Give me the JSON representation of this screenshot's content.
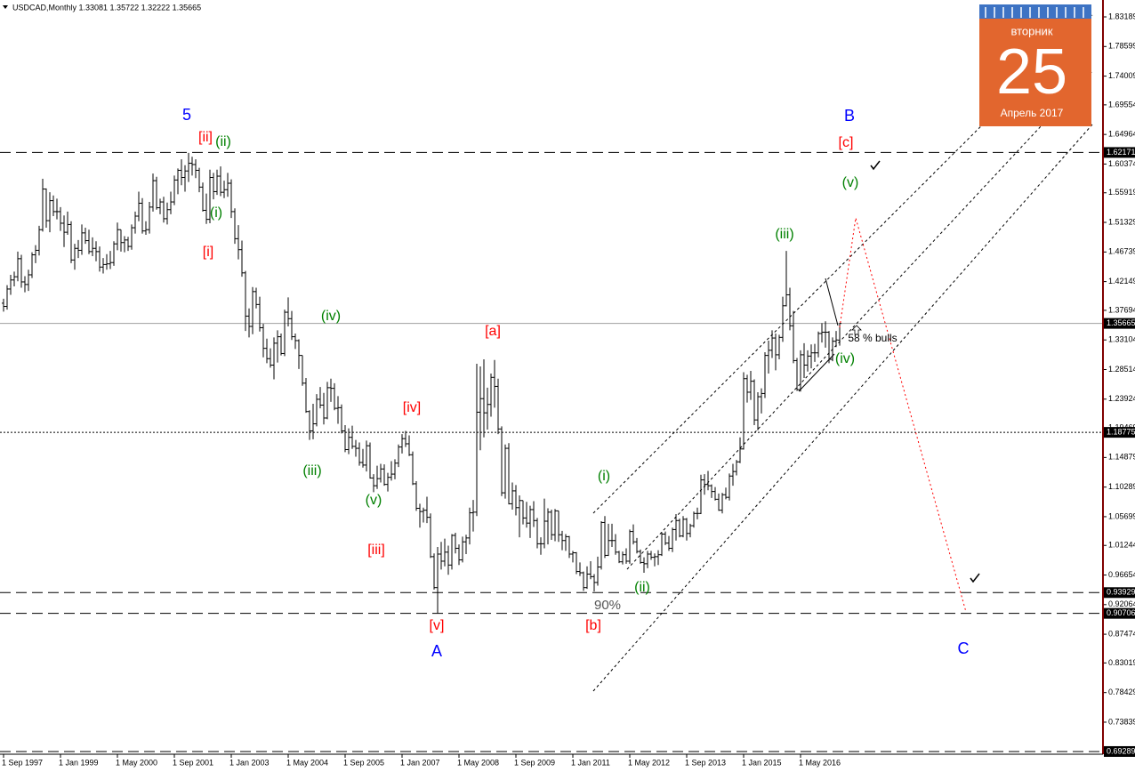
{
  "chart_data": {
    "type": "ohlc",
    "title": "USDCAD,Monthly  1.33081 1.35722 1.32222 1.35665",
    "categories": [
      "1 Sep 1997",
      null,
      null,
      null,
      null,
      null,
      null,
      null,
      null,
      null,
      null,
      null,
      null,
      null,
      null,
      null,
      "1 Jan 1999",
      null,
      null,
      null,
      null,
      null,
      null,
      null,
      null,
      null,
      null,
      null,
      null,
      null,
      null,
      null,
      "1 May 2000",
      null,
      null,
      null,
      null,
      null,
      null,
      null,
      null,
      null,
      null,
      null,
      null,
      null,
      null,
      null,
      "1 Sep 2001",
      null,
      null,
      null,
      null,
      null,
      null,
      null,
      null,
      null,
      null,
      null,
      null,
      null,
      null,
      null,
      "1 Jan 2003",
      null,
      null,
      null,
      null,
      null,
      null,
      null,
      null,
      null,
      null,
      null,
      null,
      null,
      null,
      null,
      "1 May 2004",
      null,
      null,
      null,
      null,
      null,
      null,
      null,
      null,
      null,
      null,
      null,
      null,
      null,
      null,
      null,
      "1 Sep 2005",
      null,
      null,
      null,
      null,
      null,
      null,
      null,
      null,
      null,
      null,
      null,
      null,
      null,
      null,
      null,
      "1 Jan 2007",
      null,
      null,
      null,
      null,
      null,
      null,
      null,
      null,
      null,
      null,
      null,
      null,
      null,
      null,
      null,
      "1 May 2008",
      null,
      null,
      null,
      null,
      null,
      null,
      null,
      null,
      null,
      null,
      null,
      null,
      null,
      null,
      null,
      "1 Sep 2009",
      null,
      null,
      null,
      null,
      null,
      null,
      null,
      null,
      null,
      null,
      null,
      null,
      null,
      null,
      null,
      "1 Jan 2011",
      null,
      null,
      null,
      null,
      null,
      null,
      null,
      null,
      null,
      null,
      null,
      null,
      null,
      null,
      null,
      "1 May 2012",
      null,
      null,
      null,
      null,
      null,
      null,
      null,
      null,
      null,
      null,
      null,
      null,
      null,
      null,
      null,
      "1 Sep 2013",
      null,
      null,
      null,
      null,
      null,
      null,
      null,
      null,
      null,
      null,
      null,
      null,
      null,
      null,
      null,
      "1 Jan 2015",
      null,
      null,
      null,
      null,
      null,
      null,
      null,
      null,
      null,
      null,
      null,
      null,
      null,
      null,
      null,
      "1 May 2016",
      null,
      null,
      null,
      null,
      null,
      null,
      null,
      null,
      null,
      null,
      null
    ],
    "open": [
      1.388,
      1.383,
      1.41,
      1.424,
      1.429,
      1.457,
      1.421,
      1.417,
      1.432,
      1.463,
      1.47,
      1.502,
      1.565,
      1.516,
      1.547,
      1.53,
      1.53,
      1.512,
      1.498,
      1.51,
      1.455,
      1.473,
      1.47,
      1.497,
      1.485,
      1.468,
      1.473,
      1.468,
      1.444,
      1.448,
      1.449,
      1.451,
      1.48,
      1.502,
      1.482,
      1.486,
      1.476,
      1.505,
      1.523,
      1.543,
      1.5,
      1.502,
      1.537,
      1.578,
      1.536,
      1.545,
      1.519,
      1.533,
      1.545,
      1.579,
      1.594,
      1.583,
      1.593,
      1.605,
      1.603,
      1.594,
      1.568,
      1.532,
      1.518,
      1.583,
      1.561,
      1.585,
      1.56,
      1.564,
      1.574,
      1.53,
      1.488,
      1.471,
      1.435,
      1.368,
      1.352,
      1.406,
      1.386,
      1.35,
      1.318,
      1.302,
      1.292,
      1.326,
      1.336,
      1.31,
      1.374,
      1.364,
      1.336,
      1.33,
      1.307,
      1.264,
      1.22,
      1.19,
      1.201,
      1.239,
      1.23,
      1.21,
      1.257,
      1.256,
      1.225,
      1.226,
      1.19,
      1.161,
      1.18,
      1.166,
      1.163,
      1.141,
      1.137,
      1.167,
      1.117,
      1.105,
      1.116,
      1.131,
      1.107,
      1.118,
      1.123,
      1.14,
      1.165,
      1.178,
      1.17,
      1.153,
      1.108,
      1.07,
      1.065,
      1.067,
      1.056,
      0.995,
      0.947,
      0.999,
      0.988,
      1.002,
      0.982,
      1.028,
      1.008,
      0.99,
      1.018,
      1.024,
      1.063,
      1.064,
      1.219,
      1.24,
      1.218,
      1.231,
      1.273,
      1.259,
      1.193,
      1.094,
      1.163,
      1.077,
      1.097,
      1.071,
      1.082,
      1.055,
      1.047,
      1.068,
      1.051,
      1.015,
      1.015,
      1.05,
      1.064,
      1.029,
      1.066,
      1.029,
      1.02,
      1.026,
      0.999,
      1.001,
      0.972,
      0.97,
      0.947,
      0.968,
      0.964,
      0.955,
      0.979,
      1.048,
      0.997,
      1.02,
      1.02,
      1.002,
      0.987,
      0.998,
      0.988,
      1.034,
      1.018,
      1.003,
      0.986,
      0.984,
      0.999,
      0.994,
      0.995,
      0.998,
      1.03,
      1.016,
      1.008,
      1.037,
      1.051,
      1.027,
      1.053,
      1.031,
      1.043,
      1.062,
      1.062,
      1.114,
      1.107,
      1.105,
      1.096,
      1.084,
      1.067,
      1.091,
      1.087,
      1.12,
      1.127,
      1.142,
      1.162,
      1.271,
      1.25,
      1.267,
      1.207,
      1.243,
      1.248,
      1.307,
      1.315,
      1.334,
      1.308,
      1.335,
      1.384,
      1.401,
      1.353,
      1.299,
      1.254,
      1.308,
      1.292,
      1.306,
      1.311,
      1.311,
      1.341,
      1.343,
      1.343,
      1.301,
      1.329,
      1.33081
    ],
    "high": [
      1.395,
      1.416,
      1.432,
      1.437,
      1.468,
      1.463,
      1.43,
      1.44,
      1.467,
      1.478,
      1.508,
      1.581,
      1.566,
      1.56,
      1.555,
      1.55,
      1.537,
      1.524,
      1.53,
      1.515,
      1.48,
      1.486,
      1.51,
      1.505,
      1.502,
      1.49,
      1.484,
      1.476,
      1.458,
      1.464,
      1.469,
      1.484,
      1.513,
      1.502,
      1.492,
      1.491,
      1.51,
      1.53,
      1.561,
      1.551,
      1.515,
      1.545,
      1.589,
      1.584,
      1.55,
      1.553,
      1.544,
      1.561,
      1.586,
      1.597,
      1.611,
      1.602,
      1.621,
      1.615,
      1.611,
      1.598,
      1.575,
      1.558,
      1.595,
      1.59,
      1.595,
      1.6,
      1.578,
      1.59,
      1.58,
      1.535,
      1.509,
      1.485,
      1.438,
      1.38,
      1.413,
      1.412,
      1.398,
      1.356,
      1.333,
      1.318,
      1.335,
      1.346,
      1.341,
      1.378,
      1.397,
      1.376,
      1.341,
      1.332,
      1.307,
      1.272,
      1.222,
      1.232,
      1.247,
      1.258,
      1.249,
      1.266,
      1.271,
      1.264,
      1.244,
      1.231,
      1.199,
      1.194,
      1.198,
      1.176,
      1.172,
      1.162,
      1.175,
      1.172,
      1.123,
      1.136,
      1.139,
      1.138,
      1.125,
      1.143,
      1.146,
      1.169,
      1.185,
      1.19,
      1.183,
      1.158,
      1.112,
      1.077,
      1.071,
      1.088,
      1.062,
      1.0,
      1.01,
      1.018,
      1.023,
      1.012,
      1.03,
      1.032,
      1.014,
      1.026,
      1.029,
      1.071,
      1.083,
      1.294,
      1.29,
      1.301,
      1.257,
      1.279,
      1.3,
      1.271,
      1.197,
      1.169,
      1.171,
      1.11,
      1.106,
      1.09,
      1.082,
      1.08,
      1.074,
      1.081,
      1.055,
      1.025,
      1.085,
      1.07,
      1.068,
      1.069,
      1.066,
      1.035,
      1.03,
      1.027,
      1.004,
      1.002,
      0.986,
      0.972,
      0.98,
      0.988,
      0.968,
      0.995,
      1.05,
      1.058,
      1.046,
      1.046,
      1.03,
      1.004,
      1.003,
      1.008,
      1.037,
      1.045,
      1.024,
      1.006,
      0.994,
      1.004,
      1.004,
      1.0,
      1.005,
      1.033,
      1.034,
      1.027,
      1.04,
      1.061,
      1.054,
      1.058,
      1.055,
      1.046,
      1.065,
      1.071,
      1.122,
      1.123,
      1.128,
      1.107,
      1.103,
      1.093,
      1.094,
      1.102,
      1.124,
      1.139,
      1.145,
      1.18,
      1.281,
      1.277,
      1.283,
      1.27,
      1.25,
      1.256,
      1.312,
      1.33,
      1.346,
      1.341,
      1.339,
      1.398,
      1.469,
      1.412,
      1.376,
      1.303,
      1.315,
      1.326,
      1.315,
      1.324,
      1.325,
      1.344,
      1.357,
      1.36,
      1.345,
      1.335,
      1.345,
      1.35722
    ],
    "low": [
      1.375,
      1.378,
      1.401,
      1.414,
      1.422,
      1.412,
      1.405,
      1.407,
      1.427,
      1.45,
      1.462,
      1.499,
      1.505,
      1.498,
      1.523,
      1.518,
      1.5,
      1.475,
      1.494,
      1.45,
      1.44,
      1.458,
      1.463,
      1.48,
      1.464,
      1.461,
      1.453,
      1.437,
      1.434,
      1.44,
      1.441,
      1.446,
      1.47,
      1.468,
      1.467,
      1.469,
      1.471,
      1.496,
      1.515,
      1.496,
      1.494,
      1.496,
      1.53,
      1.533,
      1.526,
      1.513,
      1.51,
      1.526,
      1.54,
      1.557,
      1.571,
      1.561,
      1.576,
      1.586,
      1.582,
      1.56,
      1.53,
      1.511,
      1.512,
      1.549,
      1.556,
      1.554,
      1.551,
      1.553,
      1.52,
      1.48,
      1.456,
      1.429,
      1.345,
      1.335,
      1.34,
      1.38,
      1.344,
      1.304,
      1.295,
      1.288,
      1.27,
      1.296,
      1.307,
      1.306,
      1.352,
      1.331,
      1.317,
      1.286,
      1.26,
      1.218,
      1.176,
      1.177,
      1.197,
      1.225,
      1.2,
      1.208,
      1.235,
      1.222,
      1.201,
      1.186,
      1.157,
      1.154,
      1.162,
      1.15,
      1.136,
      1.133,
      1.127,
      1.116,
      1.095,
      1.1,
      1.11,
      1.105,
      1.096,
      1.113,
      1.115,
      1.134,
      1.155,
      1.165,
      1.151,
      1.106,
      1.066,
      1.04,
      1.048,
      1.047,
      0.993,
      0.944,
      0.907,
      0.975,
      0.98,
      0.967,
      0.975,
      1.0,
      0.982,
      0.986,
      0.999,
      1.014,
      1.034,
      1.058,
      1.16,
      1.18,
      1.192,
      1.212,
      1.226,
      1.185,
      1.089,
      1.085,
      1.076,
      1.068,
      1.059,
      1.025,
      1.045,
      1.04,
      1.024,
      1.041,
      1.008,
      0.998,
      1.008,
      1.014,
      1.021,
      1.019,
      1.018,
      1.005,
      1.004,
      0.993,
      0.986,
      0.968,
      0.965,
      0.942,
      0.945,
      0.96,
      0.941,
      0.95,
      0.975,
      0.993,
      0.996,
      1.01,
      0.998,
      0.985,
      0.983,
      0.984,
      0.984,
      1.014,
      1.0,
      0.984,
      0.97,
      0.977,
      0.99,
      0.98,
      0.982,
      0.996,
      1.013,
      1.004,
      1.002,
      1.02,
      1.025,
      1.025,
      1.02,
      1.025,
      1.04,
      1.053,
      1.061,
      1.091,
      1.098,
      1.086,
      1.082,
      1.066,
      1.062,
      1.084,
      1.082,
      1.105,
      1.121,
      1.14,
      1.161,
      1.234,
      1.238,
      1.199,
      1.191,
      1.217,
      1.241,
      1.279,
      1.303,
      1.284,
      1.301,
      1.328,
      1.383,
      1.346,
      1.295,
      1.252,
      1.251,
      1.272,
      1.282,
      1.287,
      1.297,
      1.304,
      1.327,
      1.319,
      1.295,
      1.298,
      1.32,
      1.32222
    ],
    "close": [
      1.383,
      1.41,
      1.424,
      1.429,
      1.457,
      1.421,
      1.417,
      1.432,
      1.463,
      1.47,
      1.502,
      1.565,
      1.516,
      1.547,
      1.53,
      1.53,
      1.512,
      1.498,
      1.51,
      1.455,
      1.473,
      1.47,
      1.497,
      1.485,
      1.468,
      1.473,
      1.468,
      1.444,
      1.448,
      1.449,
      1.451,
      1.48,
      1.502,
      1.482,
      1.486,
      1.476,
      1.505,
      1.523,
      1.543,
      1.5,
      1.502,
      1.537,
      1.578,
      1.536,
      1.545,
      1.519,
      1.533,
      1.545,
      1.579,
      1.594,
      1.583,
      1.593,
      1.605,
      1.603,
      1.594,
      1.568,
      1.532,
      1.518,
      1.583,
      1.561,
      1.585,
      1.56,
      1.564,
      1.574,
      1.53,
      1.488,
      1.471,
      1.435,
      1.368,
      1.352,
      1.406,
      1.386,
      1.35,
      1.318,
      1.302,
      1.292,
      1.326,
      1.336,
      1.31,
      1.374,
      1.364,
      1.336,
      1.33,
      1.307,
      1.264,
      1.22,
      1.19,
      1.201,
      1.239,
      1.23,
      1.21,
      1.257,
      1.256,
      1.225,
      1.226,
      1.19,
      1.161,
      1.18,
      1.166,
      1.163,
      1.141,
      1.137,
      1.167,
      1.117,
      1.105,
      1.116,
      1.131,
      1.107,
      1.118,
      1.123,
      1.14,
      1.165,
      1.178,
      1.17,
      1.153,
      1.108,
      1.07,
      1.065,
      1.067,
      1.056,
      0.995,
      0.947,
      0.999,
      0.988,
      1.002,
      0.982,
      1.028,
      1.008,
      0.99,
      1.018,
      1.024,
      1.063,
      1.064,
      1.219,
      1.24,
      1.218,
      1.231,
      1.273,
      1.259,
      1.193,
      1.094,
      1.163,
      1.077,
      1.097,
      1.071,
      1.082,
      1.055,
      1.047,
      1.068,
      1.051,
      1.015,
      1.015,
      1.05,
      1.064,
      1.029,
      1.066,
      1.029,
      1.02,
      1.026,
      0.999,
      1.001,
      0.972,
      0.97,
      0.947,
      0.968,
      0.964,
      0.955,
      0.979,
      1.048,
      0.997,
      1.02,
      1.02,
      1.002,
      0.987,
      0.998,
      0.988,
      1.034,
      1.018,
      1.003,
      0.986,
      0.984,
      0.999,
      0.994,
      0.995,
      0.998,
      1.03,
      1.016,
      1.008,
      1.037,
      1.051,
      1.027,
      1.053,
      1.031,
      1.043,
      1.062,
      1.062,
      1.114,
      1.107,
      1.105,
      1.096,
      1.084,
      1.067,
      1.091,
      1.087,
      1.12,
      1.127,
      1.142,
      1.162,
      1.271,
      1.25,
      1.267,
      1.207,
      1.243,
      1.248,
      1.307,
      1.315,
      1.334,
      1.308,
      1.335,
      1.384,
      1.401,
      1.353,
      1.299,
      1.254,
      1.308,
      1.292,
      1.306,
      1.311,
      1.311,
      1.341,
      1.343,
      1.343,
      1.301,
      1.329,
      1.331,
      1.35665
    ],
    "color": "#000000",
    "ylim": [
      0.6887,
      1.8581
    ],
    "yticks": [
      1.83189,
      1.78599,
      1.74009,
      1.69554,
      1.64964,
      1.60374,
      1.55919,
      1.51329,
      1.46739,
      1.42149,
      1.37694,
      1.33104,
      1.28514,
      1.23924,
      1.19469,
      1.14879,
      1.10289,
      1.05699,
      1.01244,
      0.96654,
      0.92064,
      0.87474,
      0.83019,
      0.78429,
      0.73839
    ],
    "levels": [
      {
        "value": 1.62171,
        "line": "longdash"
      },
      {
        "value": 1.35665,
        "line": "solid"
      },
      {
        "value": 1.18775,
        "line": "dot"
      },
      {
        "value": 0.93929,
        "line": "longdash"
      },
      {
        "value": 0.90706,
        "line": "longdash"
      },
      {
        "value": 0.69289,
        "line": "longdash"
      }
    ],
    "annotations": [
      {
        "text": "5",
        "color": "#0000ff"
      },
      {
        "text": "[ii]",
        "color": "#ff0000"
      },
      {
        "text": "(ii)",
        "color": "#008000"
      },
      {
        "text": "(i)",
        "color": "#008000"
      },
      {
        "text": "[i]",
        "color": "#ff0000"
      },
      {
        "text": "(iv)",
        "color": "#008000"
      },
      {
        "text": "(iii)",
        "color": "#008000"
      },
      {
        "text": "(v)",
        "color": "#008000"
      },
      {
        "text": "[iii]",
        "color": "#ff0000"
      },
      {
        "text": "[iv]",
        "color": "#ff0000"
      },
      {
        "text": "[v]",
        "color": "#ff0000"
      },
      {
        "text": "A",
        "color": "#0000ff"
      },
      {
        "text": "[a]",
        "color": "#ff0000"
      },
      {
        "text": "[b]",
        "color": "#ff0000"
      },
      {
        "text": "(i)",
        "color": "#008000"
      },
      {
        "text": "(ii)",
        "color": "#008000"
      },
      {
        "text": "90%",
        "color": "#555555"
      },
      {
        "text": "(iii)",
        "color": "#008000"
      },
      {
        "text": "(iv)",
        "color": "#008000"
      },
      {
        "text": "(v)",
        "color": "#008000"
      },
      {
        "text": "[c]",
        "color": "#ff0000"
      },
      {
        "text": "B",
        "color": "#0000ff"
      },
      {
        "text": "C",
        "color": "#0000ff"
      },
      {
        "text": "58 % bulls",
        "color": "#000000"
      }
    ]
  },
  "calendar": {
    "weekday": "вторник",
    "day": "25",
    "month": "Апрель 2017"
  }
}
